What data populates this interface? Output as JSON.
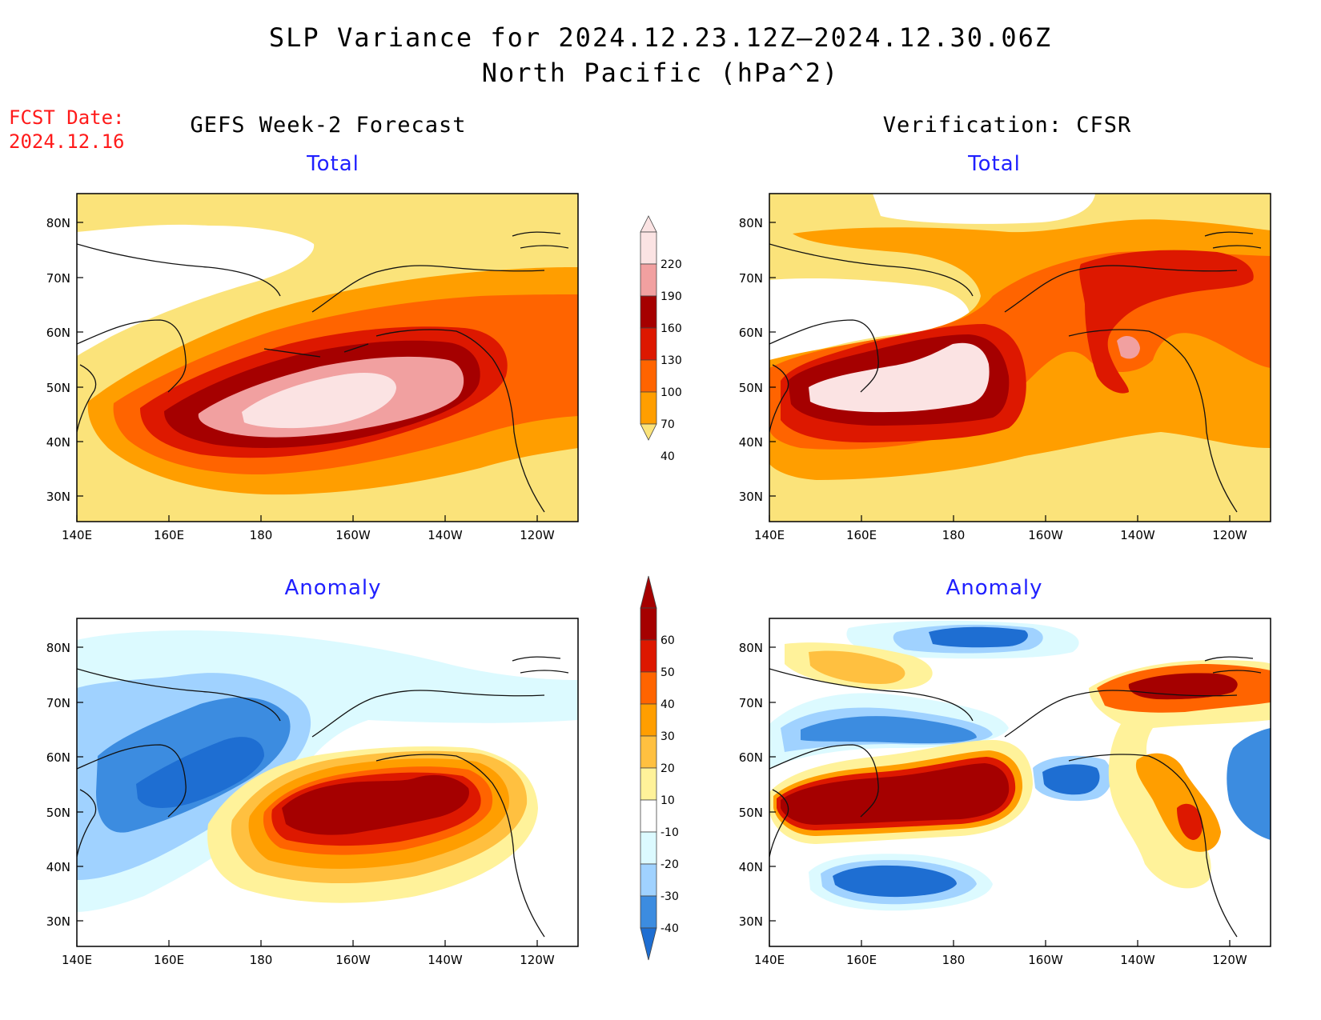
{
  "header": {
    "title_line1": "SLP Variance for 2024.12.23.12Z—2024.12.30.06Z",
    "title_line2": "North Pacific (hPa^2)",
    "fcst_label": "FCST Date:",
    "fcst_date": "2024.12.16"
  },
  "columns": {
    "left_title": "GEFS Week-2 Forecast",
    "right_title": "Verification: CFSR"
  },
  "panels": {
    "top_left_sub": "Total",
    "top_right_sub": "Total",
    "bottom_left_sub": "Anomaly",
    "bottom_right_sub": "Anomaly"
  },
  "axes": {
    "lon_labels": [
      "140E",
      "160E",
      "180",
      "160W",
      "140W",
      "120W"
    ],
    "lat_labels": [
      "80N",
      "70N",
      "60N",
      "50N",
      "40N",
      "30N"
    ]
  },
  "colorbars": {
    "total": {
      "labels": [
        "220",
        "190",
        "160",
        "130",
        "100",
        "70",
        "40"
      ],
      "colors": [
        "#fbe3e3",
        "#f1a0a0",
        "#a50000",
        "#dd1800",
        "#ff6400",
        "#ff9e00",
        "#fbe37a"
      ]
    },
    "anomaly": {
      "labels": [
        "60",
        "50",
        "40",
        "30",
        "20",
        "10",
        "-10",
        "-20",
        "-30",
        "-40"
      ],
      "colors": [
        "#a50000",
        "#dd1800",
        "#ff6400",
        "#ff9e00",
        "#ffc040",
        "#fff29a",
        "#ffffff",
        "#dcfaff",
        "#a0d2ff",
        "#3c8ce0",
        "#1e6ed2"
      ]
    }
  }
}
